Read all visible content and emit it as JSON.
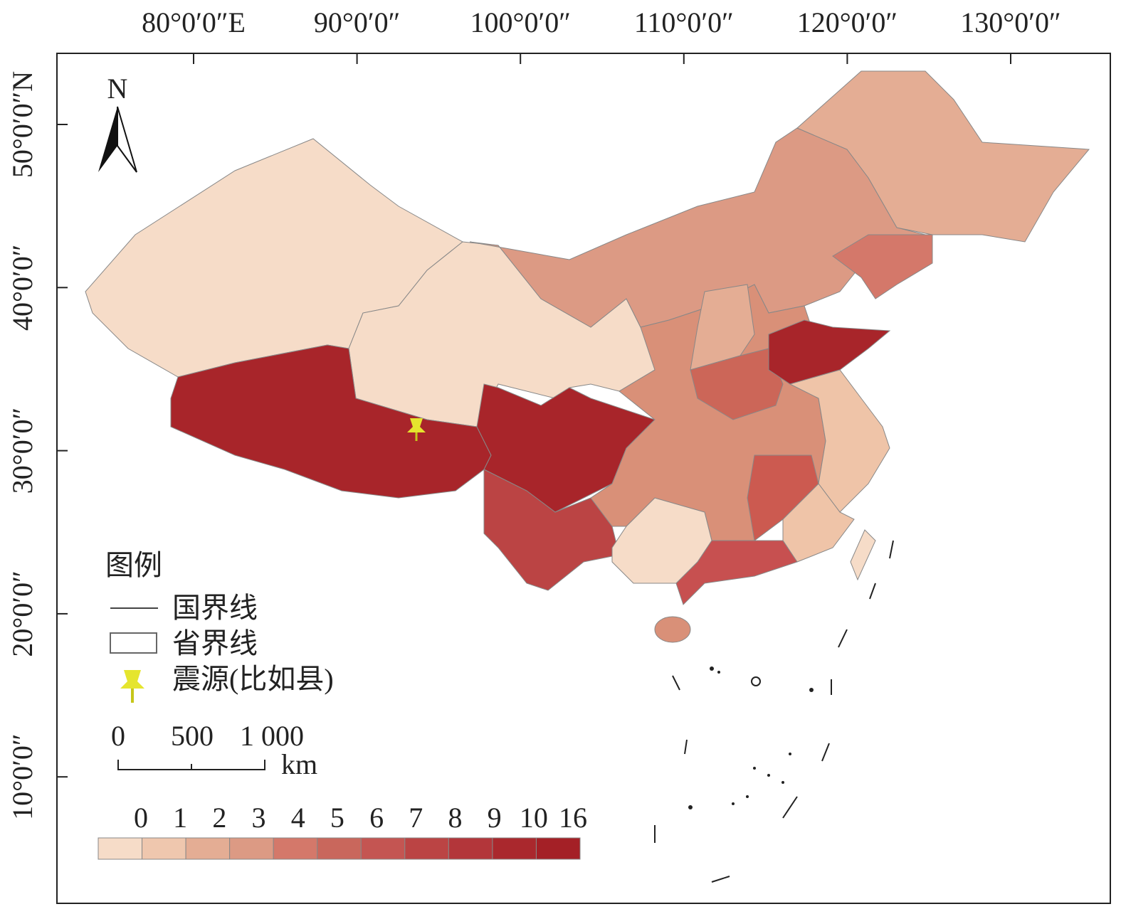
{
  "map": {
    "lon_labels": [
      "80°0′0″E",
      "90°0′0″",
      "100°0′0″",
      "110°0′0″",
      "120°0′0″",
      "130°0′0″"
    ],
    "lat_labels": [
      "50°0′0″N",
      "40°0′0″",
      "30°0′0″",
      "20°0′0″",
      "10°0′0″"
    ],
    "north": "N",
    "legend": {
      "title": "图例",
      "items": [
        "国界线",
        "省界线",
        "震源(比如县)"
      ]
    },
    "scale": {
      "labels": [
        "0",
        "500",
        "1 000"
      ],
      "unit": "km"
    },
    "color_scale": {
      "labels": [
        0,
        1,
        2,
        3,
        4,
        5,
        6,
        7,
        8,
        9,
        10,
        16
      ],
      "colors": [
        "#f6dcc8",
        "#efc7ae",
        "#e4ad94",
        "#dc9a84",
        "#d4786a",
        "#c9675c",
        "#c45552",
        "#bb4444",
        "#b3363a",
        "#aa282d",
        "#a42026"
      ]
    }
  }
}
